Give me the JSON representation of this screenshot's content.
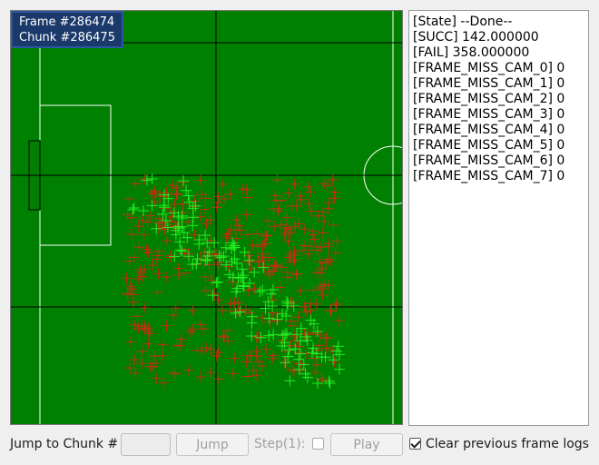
{
  "overlay": {
    "frame_label": "Frame #286474",
    "chunk_label": "Chunk #286475"
  },
  "colors": {
    "pitch": "#008000",
    "pitch_lines": "#ffffff",
    "center_lines": "#000000",
    "success_marker": "#22ee22",
    "fail_marker": "#c03010"
  },
  "log": {
    "lines": [
      "[State] --Done--",
      "[SUCC] 142.000000",
      "[FAIL] 358.000000",
      "[FRAME_MISS_CAM_0] 0",
      "[FRAME_MISS_CAM_1] 0",
      "[FRAME_MISS_CAM_2] 0",
      "[FRAME_MISS_CAM_3] 0",
      "[FRAME_MISS_CAM_4] 0",
      "[FRAME_MISS_CAM_5] 0",
      "[FRAME_MISS_CAM_6] 0",
      "[FRAME_MISS_CAM_7] 0"
    ]
  },
  "controls": {
    "jump_label": "Jump to Chunk #",
    "chunk_input_value": "",
    "jump_button": "Jump",
    "step_label": "Step(1):",
    "step_checked": false,
    "play_button": "Play",
    "clear_logs_label": "Clear previous frame logs",
    "clear_logs_checked": true
  },
  "markers": {
    "success_count": 142,
    "fail_count": 358
  }
}
